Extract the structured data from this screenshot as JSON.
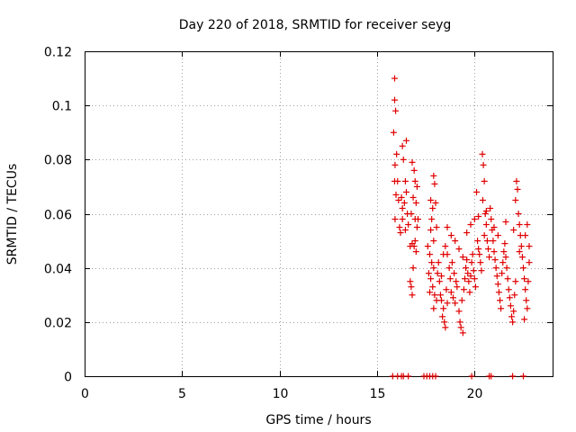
{
  "chart_data": {
    "type": "scatter",
    "title": "Day 220 of 2018, SRMTID for receiver seyg",
    "xlabel": "GPS time / hours",
    "ylabel": "SRMTID / TECUs",
    "xlim": [
      0,
      24
    ],
    "ylim": [
      0,
      0.12
    ],
    "grid": true,
    "marker": "+",
    "color": "#e00000",
    "x_ticks": [
      0,
      5,
      10,
      15,
      20
    ],
    "x_tick_labels": [
      "0",
      "5",
      "10",
      "15",
      "20"
    ],
    "y_ticks": [
      0,
      0.02,
      0.04,
      0.06,
      0.08,
      0.1,
      0.12
    ],
    "y_tick_labels": [
      "0",
      "0.02",
      "0.04",
      "0.06",
      "0.08",
      "0.1",
      "0.12"
    ],
    "series": [
      {
        "name": "SRMTID",
        "points": [
          [
            15.9,
            0.11
          ],
          [
            15.9,
            0.102
          ],
          [
            15.95,
            0.098
          ],
          [
            15.85,
            0.09
          ],
          [
            16.0,
            0.082
          ],
          [
            15.92,
            0.078
          ],
          [
            16.05,
            0.072
          ],
          [
            15.9,
            0.072
          ],
          [
            15.97,
            0.067
          ],
          [
            16.1,
            0.065
          ],
          [
            15.92,
            0.058
          ],
          [
            16.15,
            0.055
          ],
          [
            16.2,
            0.053
          ],
          [
            16.3,
            0.085
          ],
          [
            16.5,
            0.087
          ],
          [
            16.35,
            0.08
          ],
          [
            16.45,
            0.072
          ],
          [
            16.25,
            0.066
          ],
          [
            16.4,
            0.064
          ],
          [
            16.55,
            0.06
          ],
          [
            16.3,
            0.058
          ],
          [
            16.45,
            0.054
          ],
          [
            16.6,
            0.056
          ],
          [
            16.3,
            0.062
          ],
          [
            16.5,
            0.068
          ],
          [
            16.8,
            0.079
          ],
          [
            16.9,
            0.076
          ],
          [
            16.95,
            0.072
          ],
          [
            16.85,
            0.066
          ],
          [
            17.0,
            0.064
          ],
          [
            16.75,
            0.06
          ],
          [
            16.95,
            0.058
          ],
          [
            17.05,
            0.07
          ],
          [
            16.8,
            0.049
          ],
          [
            16.9,
            0.048
          ],
          [
            17.0,
            0.046
          ],
          [
            16.85,
            0.04
          ],
          [
            16.7,
            0.035
          ],
          [
            16.75,
            0.033
          ],
          [
            16.8,
            0.03
          ],
          [
            17.05,
            0.055
          ],
          [
            17.1,
            0.058
          ],
          [
            16.7,
            0.048
          ],
          [
            16.95,
            0.05
          ],
          [
            17.75,
            0.065
          ],
          [
            17.9,
            0.074
          ],
          [
            17.95,
            0.071
          ],
          [
            17.85,
            0.062
          ],
          [
            18.0,
            0.064
          ],
          [
            17.8,
            0.058
          ],
          [
            17.75,
            0.054
          ],
          [
            17.9,
            0.05
          ],
          [
            18.05,
            0.055
          ],
          [
            17.6,
            0.048
          ],
          [
            17.7,
            0.045
          ],
          [
            17.8,
            0.042
          ],
          [
            17.9,
            0.04
          ],
          [
            17.65,
            0.038
          ],
          [
            17.75,
            0.036
          ],
          [
            17.85,
            0.033
          ],
          [
            17.95,
            0.03
          ],
          [
            18.05,
            0.028
          ],
          [
            17.7,
            0.031
          ],
          [
            17.9,
            0.025
          ],
          [
            18.1,
            0.038
          ],
          [
            18.2,
            0.035
          ],
          [
            18.25,
            0.03
          ],
          [
            18.3,
            0.028
          ],
          [
            18.4,
            0.025
          ],
          [
            18.35,
            0.022
          ],
          [
            18.45,
            0.02
          ],
          [
            18.5,
            0.018
          ],
          [
            18.55,
            0.032
          ],
          [
            18.6,
            0.027
          ],
          [
            18.3,
            0.037
          ],
          [
            18.15,
            0.042
          ],
          [
            18.4,
            0.045
          ],
          [
            18.5,
            0.048
          ],
          [
            18.6,
            0.045
          ],
          [
            18.7,
            0.04
          ],
          [
            18.75,
            0.036
          ],
          [
            18.8,
            0.031
          ],
          [
            18.9,
            0.029
          ],
          [
            19.0,
            0.027
          ],
          [
            18.85,
            0.042
          ],
          [
            18.95,
            0.038
          ],
          [
            19.05,
            0.035
          ],
          [
            19.1,
            0.033
          ],
          [
            19.2,
            0.024
          ],
          [
            19.25,
            0.02
          ],
          [
            19.3,
            0.018
          ],
          [
            19.4,
            0.016
          ],
          [
            19.35,
            0.028
          ],
          [
            19.45,
            0.032
          ],
          [
            19.5,
            0.036
          ],
          [
            19.55,
            0.04
          ],
          [
            19.6,
            0.043
          ],
          [
            19.65,
            0.038
          ],
          [
            19.7,
            0.035
          ],
          [
            19.75,
            0.031
          ],
          [
            19.8,
            0.037
          ],
          [
            19.85,
            0.042
          ],
          [
            19.9,
            0.045
          ],
          [
            19.95,
            0.039
          ],
          [
            20.0,
            0.036
          ],
          [
            20.05,
            0.033
          ],
          [
            20.1,
            0.068
          ],
          [
            20.15,
            0.05
          ],
          [
            20.2,
            0.047
          ],
          [
            20.25,
            0.045
          ],
          [
            20.3,
            0.042
          ],
          [
            20.35,
            0.039
          ],
          [
            20.4,
            0.082
          ],
          [
            20.45,
            0.078
          ],
          [
            20.5,
            0.072
          ],
          [
            20.42,
            0.065
          ],
          [
            20.55,
            0.06
          ],
          [
            20.6,
            0.056
          ],
          [
            20.5,
            0.052
          ],
          [
            20.65,
            0.05
          ],
          [
            20.7,
            0.047
          ],
          [
            20.75,
            0.044
          ],
          [
            20.8,
            0.062
          ],
          [
            20.85,
            0.058
          ],
          [
            20.9,
            0.054
          ],
          [
            20.95,
            0.05
          ],
          [
            21.0,
            0.046
          ],
          [
            21.05,
            0.043
          ],
          [
            21.1,
            0.04
          ],
          [
            21.15,
            0.037
          ],
          [
            21.2,
            0.034
          ],
          [
            21.25,
            0.031
          ],
          [
            21.3,
            0.028
          ],
          [
            21.35,
            0.025
          ],
          [
            21.4,
            0.038
          ],
          [
            21.45,
            0.042
          ],
          [
            21.5,
            0.046
          ],
          [
            21.55,
            0.049
          ],
          [
            21.6,
            0.044
          ],
          [
            21.65,
            0.04
          ],
          [
            21.7,
            0.036
          ],
          [
            21.75,
            0.032
          ],
          [
            21.8,
            0.029
          ],
          [
            21.85,
            0.026
          ],
          [
            21.9,
            0.022
          ],
          [
            21.95,
            0.02
          ],
          [
            22.0,
            0.024
          ],
          [
            22.05,
            0.03
          ],
          [
            22.1,
            0.035
          ],
          [
            22.15,
            0.072
          ],
          [
            22.2,
            0.069
          ],
          [
            22.1,
            0.065
          ],
          [
            22.25,
            0.06
          ],
          [
            22.3,
            0.056
          ],
          [
            22.35,
            0.052
          ],
          [
            22.4,
            0.048
          ],
          [
            22.45,
            0.044
          ],
          [
            22.5,
            0.04
          ],
          [
            22.55,
            0.036
          ],
          [
            22.6,
            0.032
          ],
          [
            22.65,
            0.028
          ],
          [
            22.7,
            0.025
          ],
          [
            22.55,
            0.021
          ],
          [
            22.75,
            0.035
          ],
          [
            22.8,
            0.042
          ],
          [
            22.6,
            0.052
          ],
          [
            22.7,
            0.056
          ],
          [
            18.6,
            0.055
          ],
          [
            18.8,
            0.052
          ],
          [
            19.0,
            0.05
          ],
          [
            19.2,
            0.047
          ],
          [
            19.4,
            0.044
          ],
          [
            19.6,
            0.053
          ],
          [
            19.8,
            0.056
          ],
          [
            20.0,
            0.058
          ],
          [
            20.2,
            0.059
          ],
          [
            20.6,
            0.061
          ],
          [
            21.0,
            0.055
          ],
          [
            21.2,
            0.052
          ],
          [
            21.6,
            0.057
          ],
          [
            22.0,
            0.054
          ],
          [
            22.3,
            0.046
          ],
          [
            22.8,
            0.048
          ],
          [
            15.8,
            0
          ],
          [
            16.05,
            0
          ],
          [
            16.25,
            0
          ],
          [
            16.35,
            0
          ],
          [
            16.6,
            0
          ],
          [
            17.4,
            0
          ],
          [
            17.55,
            0
          ],
          [
            17.7,
            0
          ],
          [
            17.85,
            0
          ],
          [
            18.0,
            0
          ],
          [
            19.85,
            0
          ],
          [
            20.75,
            0
          ],
          [
            20.85,
            0
          ],
          [
            21.95,
            0
          ],
          [
            22.5,
            0
          ]
        ]
      }
    ]
  }
}
